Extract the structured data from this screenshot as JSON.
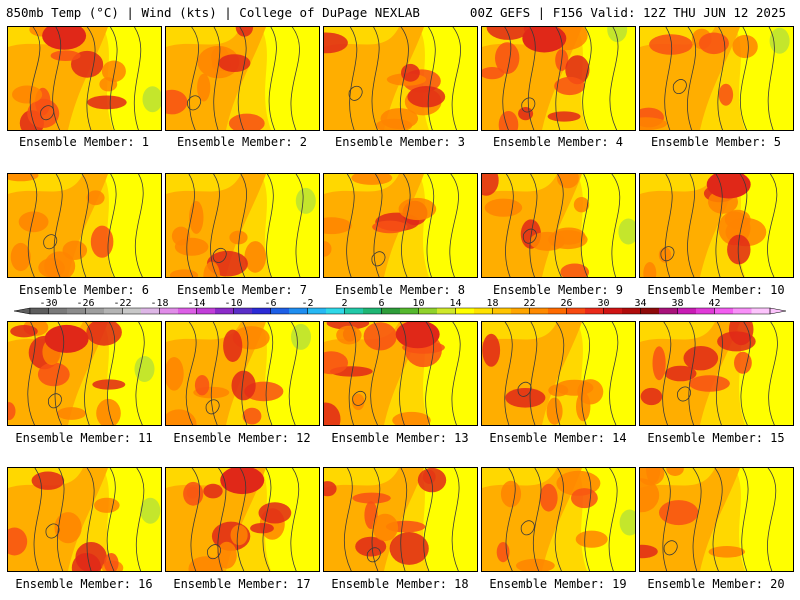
{
  "header": {
    "left_title": "850mb Temp (°C) | Wind (kts) | College of DuPage NEXLAB",
    "right_title": "00Z GEFS | F156 Valid: 12Z THU JUN 12 2025"
  },
  "caption_prefix": "Ensemble Member:",
  "panels": [
    {
      "label": "Ensemble Member: 1",
      "warm": 0.7
    },
    {
      "label": "Ensemble Member: 2",
      "warm": 0.45
    },
    {
      "label": "Ensemble Member: 3",
      "warm": 0.55
    },
    {
      "label": "Ensemble Member: 4",
      "warm": 0.85
    },
    {
      "label": "Ensemble Member: 5",
      "warm": 0.35
    },
    {
      "label": "Ensemble Member: 6",
      "warm": 0.55
    },
    {
      "label": "Ensemble Member: 7",
      "warm": 0.5
    },
    {
      "label": "Ensemble Member: 8",
      "warm": 0.35
    },
    {
      "label": "Ensemble Member: 9",
      "warm": 0.6
    },
    {
      "label": "Ensemble Member: 10",
      "warm": 0.65
    },
    {
      "label": "Ensemble Member: 11",
      "warm": 0.75
    },
    {
      "label": "Ensemble Member: 12",
      "warm": 0.6
    },
    {
      "label": "Ensemble Member: 13",
      "warm": 0.85
    },
    {
      "label": "Ensemble Member: 14",
      "warm": 0.4
    },
    {
      "label": "Ensemble Member: 15",
      "warm": 0.55
    },
    {
      "label": "Ensemble Member: 16",
      "warm": 0.55
    },
    {
      "label": "Ensemble Member: 17",
      "warm": 0.7
    },
    {
      "label": "Ensemble Member: 18",
      "warm": 0.6
    },
    {
      "label": "Ensemble Member: 19",
      "warm": 0.35
    },
    {
      "label": "Ensemble Member: 20",
      "warm": 0.35
    }
  ],
  "colorbar": {
    "tick_labels": [
      "-30",
      "-26",
      "-22",
      "-18",
      "-14",
      "-10",
      "-6",
      "-2",
      "2",
      "6",
      "10",
      "14",
      "18",
      "22",
      "26",
      "30",
      "34",
      "38",
      "42"
    ],
    "colors": [
      "#5e5e5e",
      "#7a7a7a",
      "#8c8c8c",
      "#9e9e9e",
      "#b4b4b4",
      "#c8c8c8",
      "#ddb6e6",
      "#e08ce8",
      "#dc5fe6",
      "#c13ed9",
      "#8b2bc9",
      "#5a2fc8",
      "#2b2bd6",
      "#1d5fe6",
      "#1f8ef0",
      "#27b8f4",
      "#2fd8e8",
      "#22c9a8",
      "#1fb673",
      "#2e9d3a",
      "#55b82e",
      "#90d22c",
      "#cfe82a",
      "#ffff00",
      "#ffe200",
      "#ffc400",
      "#ffa600",
      "#ff8a00",
      "#ff6a00",
      "#f84a10",
      "#ea2a1a",
      "#d01414",
      "#b00c0c",
      "#8e0a0a",
      "#a8127a",
      "#c81cb4",
      "#e03ad8",
      "#f25ef0",
      "#f890f8",
      "#fcc4fc"
    ],
    "tick_color": "#000000"
  },
  "colors": {
    "field_yellow": "#ffff00",
    "field_yellow_orange": "#ffd800",
    "field_orange": "#ffae00",
    "field_dark_orange": "#ff8400",
    "field_red_orange": "#f85014",
    "field_red": "#e02818",
    "field_green": "#c4e62c",
    "contour": "#3a3a3a"
  }
}
